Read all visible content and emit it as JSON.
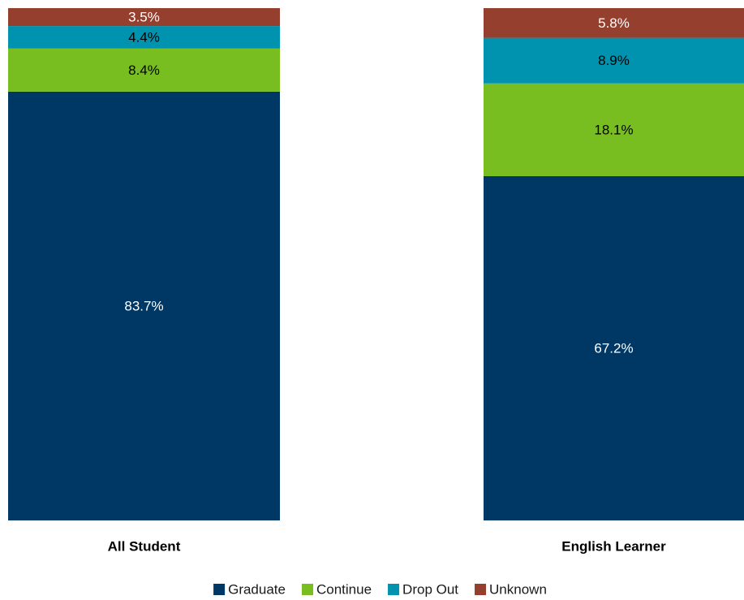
{
  "chart_data": {
    "type": "stacked_bar",
    "categories": [
      "All Student",
      "English Learner"
    ],
    "ylim": [
      0,
      100
    ],
    "series": [
      {
        "name": "Graduate",
        "color": "#003865",
        "values": [
          83.7,
          67.2
        ],
        "value_labels": [
          "83.7%",
          "67.2%"
        ]
      },
      {
        "name": "Continue",
        "color": "#78be20",
        "values": [
          8.4,
          18.1
        ],
        "value_labels": [
          "8.4%",
          "18.1%"
        ]
      },
      {
        "name": "Drop Out",
        "color": "#0093af",
        "values": [
          4.4,
          8.9
        ],
        "value_labels": [
          "4.4%",
          "8.9%"
        ]
      },
      {
        "name": "Unknown",
        "color": "#953f2e",
        "values": [
          3.5,
          5.8
        ],
        "value_labels": [
          "3.5%",
          "5.8%"
        ]
      }
    ]
  }
}
